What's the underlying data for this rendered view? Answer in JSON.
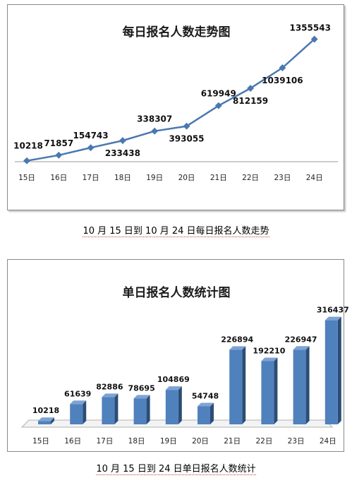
{
  "chart_data": [
    {
      "type": "line",
      "title": "每日报名人数走势图",
      "categories": [
        "15日",
        "16日",
        "17日",
        "18日",
        "19日",
        "20日",
        "21日",
        "22日",
        "23日",
        "24日"
      ],
      "values": [
        10218,
        71857,
        154743,
        233438,
        338307,
        393055,
        619949,
        812159,
        1039106,
        1355543
      ],
      "data_labels": [
        "10218",
        "71857",
        "154743",
        "233438",
        "338307",
        "393055",
        "619949",
        "812159",
        "1039106",
        "1355543"
      ],
      "ylim": [
        0,
        1500000
      ],
      "grid": false,
      "legend": "none",
      "colors": {
        "line": "#4a78b0",
        "marker": "#4a78b0"
      }
    },
    {
      "type": "bar",
      "title": "单日报名人数统计图",
      "categories": [
        "15日",
        "16日",
        "17日",
        "18日",
        "19日",
        "20日",
        "21日",
        "22日",
        "23日",
        "24日"
      ],
      "values": [
        10218,
        61639,
        82886,
        78695,
        104869,
        54748,
        226894,
        192210,
        226947,
        316437
      ],
      "data_labels": [
        "10218",
        "61639",
        "82886",
        "78695",
        "104869",
        "54748",
        "226894",
        "192210",
        "226947",
        "316437"
      ],
      "ylim": [
        0,
        350000
      ],
      "grid": false,
      "legend": "none",
      "colors": {
        "bar_front": "#4f81bd",
        "bar_side": "#2c4d75",
        "bar_top": "#7ea3d3"
      }
    }
  ],
  "captions": {
    "line_caption": "10 月 15 日到 10 月 24 日每日报名人数走势",
    "bar_caption": "10 月 15 日到 24 日单日报名人数统计"
  }
}
